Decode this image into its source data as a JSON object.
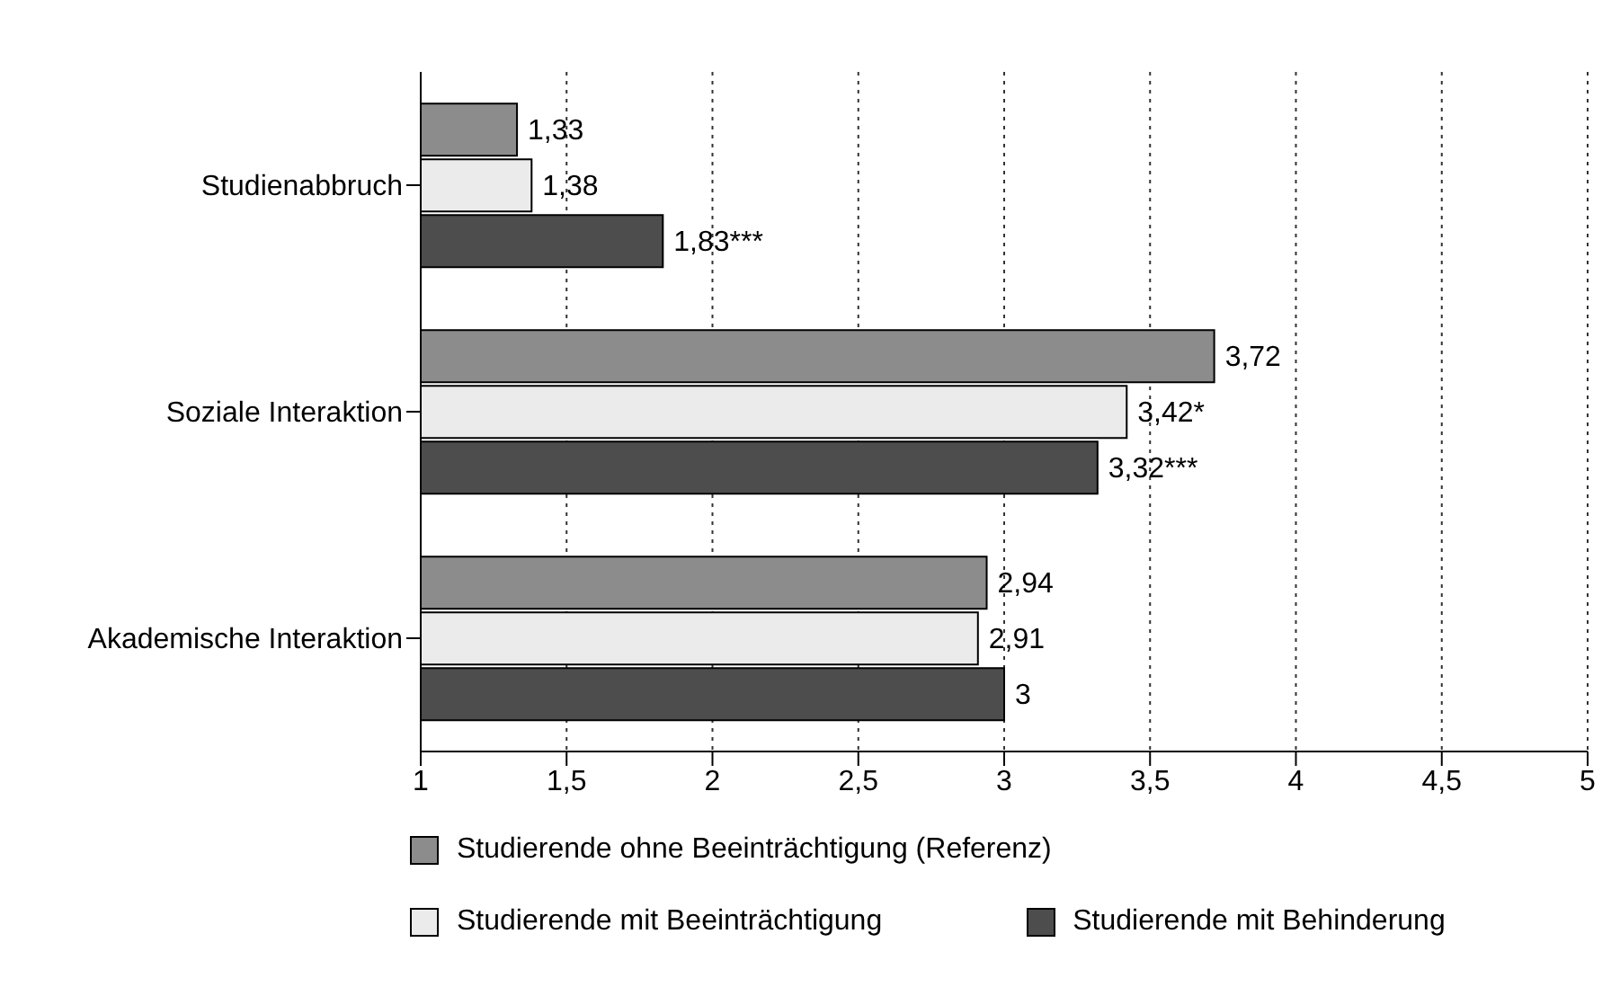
{
  "chart_data": {
    "type": "bar",
    "orientation": "horizontal",
    "categories": [
      "Studienabbruch",
      "Soziale Interaktion",
      "Akademische Interaktion"
    ],
    "series": [
      {
        "name": "Studierende ohne Beeinträchtigung (Referenz)",
        "color": "#8c8c8c",
        "values": [
          1.33,
          3.72,
          2.94
        ],
        "value_labels": [
          "1,33",
          "3,72",
          "2,94"
        ]
      },
      {
        "name": "Studierende mit Beeinträchtigung",
        "color": "#ebebeb",
        "values": [
          1.38,
          3.42,
          2.91
        ],
        "value_labels": [
          "1,38",
          "3,42*",
          "2,91"
        ]
      },
      {
        "name": "Studierende mit Behinderung",
        "color": "#4d4d4d",
        "values": [
          1.83,
          3.32,
          3
        ],
        "value_labels": [
          "1,83***",
          "3,32***",
          "3"
        ]
      }
    ],
    "xlim": [
      1,
      5
    ],
    "xticks": [
      1,
      {
        "value": 1.5,
        "label": "1,5"
      },
      2,
      {
        "value": 2.5,
        "label": "2,5"
      },
      3,
      {
        "value": 3.5,
        "label": "3,5"
      },
      4,
      {
        "value": 4.5,
        "label": "4,5"
      },
      5
    ],
    "grid": "x",
    "legend": "bottom"
  }
}
